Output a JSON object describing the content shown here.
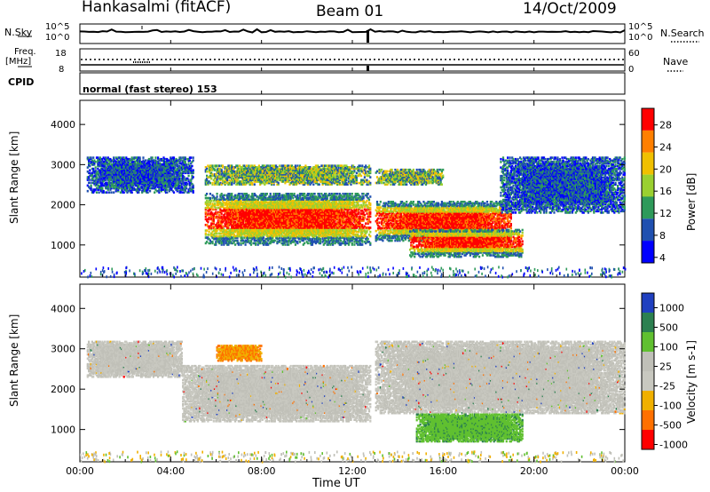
{
  "header": {
    "station": "Hankasalmi (fitACF)",
    "beam": "Beam 01",
    "date": "14/Oct/2009"
  },
  "top_panels": {
    "nsky_label": "N.Sky",
    "nsky_ticks": [
      "10^5",
      "10^0"
    ],
    "nsearch_label": "N.Search",
    "nsearch_ticks": [
      "10^5",
      "10^0"
    ],
    "freq_label": "Freq.",
    "freq_unit": "[MHz]",
    "freq_ticks": [
      "18",
      "8"
    ],
    "nave_label": "Nave",
    "nave_ticks": [
      "60",
      "0"
    ],
    "cpid_label": "CPID",
    "cpid_text": "normal (fast stereo) 153"
  },
  "chart_data": [
    {
      "type": "heatmap",
      "name": "power",
      "ylabel": "Slant Range [km]",
      "xlabel": "Time UT",
      "ylim": [
        200,
        4600
      ],
      "y_ticks": [
        "4000",
        "3000",
        "2000",
        "1000"
      ],
      "x_ticks": [
        "00:00",
        "04:00",
        "08:00",
        "12:00",
        "16:00",
        "20:00",
        "00:00"
      ],
      "colorbar_label": "Power [dB]",
      "colorbar_ticks": [
        "28",
        "24",
        "20",
        "16",
        "12",
        "8",
        "4"
      ],
      "colors": [
        "#ff0000",
        "#ff7f00",
        "#f0c000",
        "#9ad030",
        "#2e9a5a",
        "#2050b0",
        "#0000ff"
      ],
      "regions": [
        {
          "t": [
            0.3,
            5.0
          ],
          "r": [
            2300,
            3200
          ],
          "level": "weak"
        },
        {
          "t": [
            5.5,
            12.8
          ],
          "r": [
            2500,
            3000
          ],
          "level": "medium"
        },
        {
          "t": [
            13.0,
            16.0
          ],
          "r": [
            2500,
            2900
          ],
          "level": "medium"
        },
        {
          "t": [
            5.5,
            12.8
          ],
          "r": [
            1000,
            2300
          ],
          "level": "strong"
        },
        {
          "t": [
            13.0,
            19.0
          ],
          "r": [
            1100,
            2100
          ],
          "level": "strong"
        },
        {
          "t": [
            14.5,
            19.5
          ],
          "r": [
            700,
            1400
          ],
          "level": "strong"
        },
        {
          "t": [
            18.5,
            24.0
          ],
          "r": [
            1800,
            3200
          ],
          "level": "weak"
        }
      ]
    },
    {
      "type": "heatmap",
      "name": "velocity",
      "ylabel": "Slant Range [km]",
      "xlabel": "Time UT",
      "ylim": [
        200,
        4600
      ],
      "y_ticks": [
        "4000",
        "3000",
        "2000",
        "1000"
      ],
      "x_ticks": [
        "00:00",
        "04:00",
        "08:00",
        "12:00",
        "16:00",
        "20:00",
        "00:00"
      ],
      "colorbar_label": "Velocity [m s-1]",
      "colorbar_ticks": [
        "1000",
        "500",
        "100",
        "25",
        "-25",
        "-100",
        "-500",
        "-1000"
      ],
      "colors": [
        "#2040c0",
        "#2c8050",
        "#60c030",
        "#c0c0b8",
        "#c8c8c0",
        "#f0b000",
        "#ff7000",
        "#ff0000"
      ],
      "regions": [
        {
          "t": [
            0.3,
            4.5
          ],
          "r": [
            2300,
            3200
          ],
          "v": "near zero"
        },
        {
          "t": [
            4.5,
            12.8
          ],
          "r": [
            1200,
            2600
          ],
          "v": "near zero"
        },
        {
          "t": [
            13.0,
            24.0
          ],
          "r": [
            1400,
            3200
          ],
          "v": "near zero"
        },
        {
          "t": [
            14.8,
            19.5
          ],
          "r": [
            700,
            1400
          ],
          "v": "+100"
        },
        {
          "t": [
            6.0,
            8.0
          ],
          "r": [
            2700,
            3100
          ],
          "v": "-100"
        }
      ]
    }
  ]
}
